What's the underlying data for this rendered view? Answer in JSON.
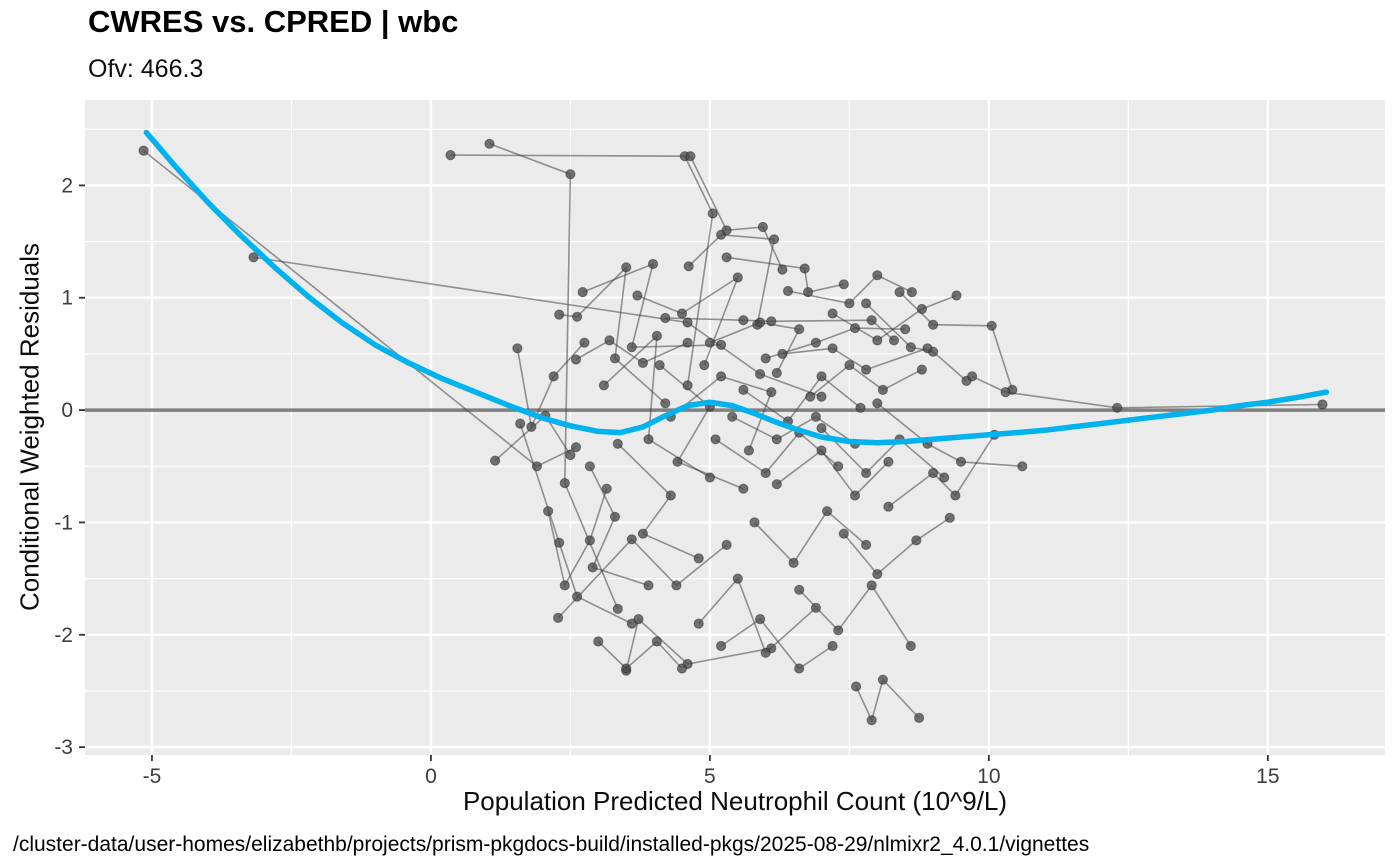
{
  "header": {
    "title": "CWRES vs. CPRED | wbc",
    "subtitle": "Ofv: 466.3"
  },
  "caption": "/cluster-data/user-homes/elizabethb/projects/prism-pkgdocs-build/installed-pkgs/2025-08-29/nlmixr2_4.0.1/vignettes",
  "chart_data": {
    "type": "scatter",
    "title": "CWRES vs. CPRED | wbc",
    "subtitle": "Ofv: 466.3",
    "xlabel": "Population Predicted Neutrophil Count (10^9/L)",
    "ylabel": "Conditional Weighted Residuals",
    "xlim": [
      -6.2,
      17.1
    ],
    "ylim": [
      -3.07,
      2.76
    ],
    "x_ticks": [
      -5,
      0,
      5,
      10,
      15
    ],
    "y_ticks": [
      -3,
      -2,
      -1,
      0,
      1,
      2
    ],
    "x_minor_ticks": [
      -2.5,
      2.5,
      7.5,
      12.5
    ],
    "y_minor_ticks": [
      -2.5,
      -1.5,
      -0.5,
      0.5,
      1.5,
      2.5
    ],
    "grid": true,
    "legend": "none",
    "reference_line_y": 0,
    "colors": {
      "panel_bg": "#ebebeb",
      "grid": "#ffffff",
      "point": "#474747",
      "line": "#424242",
      "ref_line": "#808080",
      "smooth": "#00b2ee",
      "tick_text": "#3d3d3d"
    },
    "smooth": {
      "name": "loess-smooth",
      "color": "#00b2ee",
      "points": [
        [
          -5.1,
          2.47
        ],
        [
          -4.6,
          2.18
        ],
        [
          -4.0,
          1.85
        ],
        [
          -3.4,
          1.55
        ],
        [
          -2.8,
          1.27
        ],
        [
          -2.2,
          1.01
        ],
        [
          -1.6,
          0.78
        ],
        [
          -1.0,
          0.58
        ],
        [
          -0.4,
          0.42
        ],
        [
          0.2,
          0.28
        ],
        [
          0.8,
          0.16
        ],
        [
          1.4,
          0.04
        ],
        [
          2.0,
          -0.07
        ],
        [
          2.5,
          -0.14
        ],
        [
          3.0,
          -0.19
        ],
        [
          3.4,
          -0.2
        ],
        [
          3.8,
          -0.15
        ],
        [
          4.2,
          -0.05
        ],
        [
          4.6,
          0.04
        ],
        [
          5.0,
          0.07
        ],
        [
          5.4,
          0.04
        ],
        [
          5.8,
          -0.03
        ],
        [
          6.2,
          -0.11
        ],
        [
          6.6,
          -0.18
        ],
        [
          7.0,
          -0.24
        ],
        [
          7.5,
          -0.28
        ],
        [
          8.0,
          -0.29
        ],
        [
          8.5,
          -0.28
        ],
        [
          9.0,
          -0.26
        ],
        [
          9.5,
          -0.24
        ],
        [
          10.0,
          -0.22
        ],
        [
          10.5,
          -0.2
        ],
        [
          11.0,
          -0.18
        ],
        [
          11.5,
          -0.15
        ],
        [
          12.0,
          -0.12
        ],
        [
          12.5,
          -0.09
        ],
        [
          13.0,
          -0.06
        ],
        [
          13.5,
          -0.03
        ],
        [
          14.0,
          0.0
        ],
        [
          14.5,
          0.04
        ],
        [
          15.0,
          0.07
        ],
        [
          15.5,
          0.11
        ],
        [
          16.05,
          0.16
        ]
      ]
    },
    "subject_paths": [
      [
        [
          -5.15,
          2.31
        ],
        [
          1.9,
          -0.5
        ],
        [
          2.6,
          -0.33
        ]
      ],
      [
        [
          -3.18,
          1.36
        ],
        [
          4.6,
          0.78
        ],
        [
          5.9,
          0.32
        ],
        [
          7.0,
          0.12
        ]
      ],
      [
        [
          0.35,
          2.27
        ],
        [
          4.55,
          2.26
        ],
        [
          5.05,
          1.75
        ],
        [
          4.6,
          0.22
        ]
      ],
      [
        [
          1.05,
          2.37
        ],
        [
          2.5,
          2.1
        ],
        [
          2.4,
          -0.65
        ],
        [
          3.35,
          -1.77
        ]
      ],
      [
        [
          1.6,
          -0.12
        ],
        [
          2.3,
          -1.18
        ],
        [
          2.62,
          -1.66
        ],
        [
          3.6,
          -1.9
        ]
      ],
      [
        [
          2.3,
          0.85
        ],
        [
          2.62,
          0.83
        ],
        [
          3.5,
          1.27
        ],
        [
          3.3,
          0.46
        ],
        [
          4.2,
          0.06
        ]
      ],
      [
        [
          2.72,
          1.05
        ],
        [
          3.98,
          1.3
        ],
        [
          3.6,
          0.56
        ],
        [
          5.2,
          0.58
        ]
      ],
      [
        [
          2.85,
          -0.5
        ],
        [
          3.3,
          -0.95
        ],
        [
          2.9,
          -1.4
        ],
        [
          3.9,
          -1.56
        ]
      ],
      [
        [
          3.1,
          0.22
        ],
        [
          4.05,
          0.66
        ],
        [
          3.9,
          -0.26
        ],
        [
          5.0,
          -0.6
        ]
      ],
      [
        [
          3.35,
          -0.3
        ],
        [
          4.3,
          -0.76
        ],
        [
          3.8,
          -1.1
        ],
        [
          4.8,
          -1.32
        ]
      ],
      [
        [
          3.5,
          -2.32
        ],
        [
          3.72,
          -1.86
        ],
        [
          4.6,
          -2.26
        ],
        [
          6.1,
          -2.12
        ]
      ],
      [
        [
          2.28,
          -1.85
        ],
        [
          3.6,
          -1.15
        ],
        [
          4.4,
          -1.56
        ],
        [
          5.3,
          -1.2
        ]
      ],
      [
        [
          3.7,
          1.02
        ],
        [
          4.5,
          0.86
        ],
        [
          5.5,
          1.18
        ],
        [
          4.9,
          0.4
        ]
      ],
      [
        [
          4.1,
          0.4
        ],
        [
          5.0,
          0.03
        ],
        [
          4.42,
          -0.46
        ],
        [
          5.6,
          -0.7
        ]
      ],
      [
        [
          4.3,
          -0.06
        ],
        [
          5.2,
          0.3
        ],
        [
          6.1,
          0.16
        ],
        [
          5.7,
          -0.36
        ]
      ],
      [
        [
          4.62,
          1.28
        ],
        [
          5.2,
          1.56
        ],
        [
          6.15,
          1.52
        ],
        [
          5.85,
          0.76
        ]
      ],
      [
        [
          4.8,
          -1.9
        ],
        [
          5.5,
          -1.5
        ],
        [
          6.0,
          -2.16
        ],
        [
          6.9,
          -1.76
        ]
      ],
      [
        [
          5.0,
          0.6
        ],
        [
          5.9,
          0.78
        ],
        [
          6.6,
          0.72
        ],
        [
          6.2,
          0.33
        ]
      ],
      [
        [
          5.1,
          -0.26
        ],
        [
          6.0,
          -0.56
        ],
        [
          6.6,
          -0.2
        ],
        [
          7.3,
          -0.5
        ]
      ],
      [
        [
          5.3,
          1.36
        ],
        [
          6.7,
          1.26
        ],
        [
          6.76,
          1.05
        ],
        [
          7.4,
          1.12
        ]
      ],
      [
        [
          5.6,
          0.18
        ],
        [
          6.4,
          -0.1
        ],
        [
          7.0,
          0.3
        ],
        [
          7.7,
          0.02
        ]
      ],
      [
        [
          5.8,
          -1.0
        ],
        [
          6.5,
          -1.36
        ],
        [
          7.1,
          -0.9
        ],
        [
          7.8,
          -1.2
        ]
      ],
      [
        [
          6.0,
          0.46
        ],
        [
          6.9,
          0.6
        ],
        [
          7.6,
          0.73
        ],
        [
          8.5,
          0.72
        ]
      ],
      [
        [
          6.2,
          -0.66
        ],
        [
          7.0,
          -0.36
        ],
        [
          7.6,
          -0.76
        ],
        [
          8.2,
          -0.46
        ]
      ],
      [
        [
          6.4,
          1.06
        ],
        [
          7.5,
          0.95
        ],
        [
          8.0,
          1.2
        ],
        [
          8.62,
          1.05
        ]
      ],
      [
        [
          6.6,
          -1.6
        ],
        [
          7.3,
          -1.96
        ],
        [
          7.9,
          -1.56
        ],
        [
          8.6,
          -2.1
        ]
      ],
      [
        [
          6.8,
          0.12
        ],
        [
          7.5,
          0.4
        ],
        [
          8.1,
          0.18
        ],
        [
          8.8,
          0.36
        ]
      ],
      [
        [
          7.0,
          -0.16
        ],
        [
          7.8,
          -0.56
        ],
        [
          8.4,
          -0.26
        ],
        [
          9.2,
          -0.6
        ]
      ],
      [
        [
          7.2,
          0.86
        ],
        [
          8.0,
          0.62
        ],
        [
          8.8,
          0.9
        ],
        [
          9.42,
          1.02
        ]
      ],
      [
        [
          7.4,
          -1.1
        ],
        [
          8.0,
          -1.46
        ],
        [
          8.7,
          -1.16
        ],
        [
          9.3,
          -0.96
        ]
      ],
      [
        [
          7.62,
          -2.46
        ],
        [
          7.9,
          -2.76
        ],
        [
          8.1,
          -2.4
        ],
        [
          8.75,
          -2.74
        ]
      ],
      [
        [
          7.8,
          0.95
        ],
        [
          8.6,
          0.56
        ],
        [
          9.0,
          0.52
        ],
        [
          9.6,
          0.26
        ]
      ],
      [
        [
          8.0,
          0.06
        ],
        [
          8.9,
          -0.3
        ],
        [
          9.5,
          -0.46
        ],
        [
          10.6,
          -0.5
        ]
      ],
      [
        [
          8.2,
          -0.86
        ],
        [
          9.0,
          -0.56
        ],
        [
          9.4,
          -0.76
        ],
        [
          10.1,
          -0.22
        ]
      ],
      [
        [
          8.4,
          1.05
        ],
        [
          9.0,
          0.76
        ],
        [
          10.05,
          0.75
        ],
        [
          10.42,
          0.18
        ]
      ],
      [
        [
          2.1,
          -0.9
        ],
        [
          2.4,
          -1.56
        ],
        [
          2.85,
          -1.16
        ],
        [
          3.15,
          -0.7
        ]
      ],
      [
        [
          9.7,
          0.3
        ],
        [
          10.3,
          0.16
        ],
        [
          12.3,
          0.02
        ],
        [
          15.98,
          0.05
        ]
      ],
      [
        [
          1.55,
          0.55
        ],
        [
          1.8,
          -0.15
        ],
        [
          2.2,
          0.3
        ],
        [
          2.75,
          0.6
        ]
      ],
      [
        [
          3.0,
          -2.06
        ],
        [
          3.5,
          -2.3
        ],
        [
          4.05,
          -2.06
        ],
        [
          4.5,
          -2.3
        ]
      ],
      [
        [
          5.2,
          -2.1
        ],
        [
          5.9,
          -1.86
        ],
        [
          6.6,
          -2.3
        ],
        [
          7.2,
          -2.1
        ]
      ],
      [
        [
          4.2,
          0.82
        ],
        [
          5.6,
          0.8
        ],
        [
          6.1,
          0.79
        ],
        [
          7.9,
          0.8
        ],
        [
          8.3,
          0.62
        ]
      ],
      [
        [
          2.6,
          0.45
        ],
        [
          3.2,
          0.62
        ],
        [
          3.8,
          0.42
        ],
        [
          4.6,
          0.6
        ]
      ],
      [
        [
          6.3,
          0.5
        ],
        [
          7.2,
          0.55
        ],
        [
          7.8,
          0.36
        ],
        [
          8.9,
          0.55
        ]
      ],
      [
        [
          5.4,
          -0.06
        ],
        [
          6.2,
          -0.26
        ],
        [
          6.9,
          -0.06
        ],
        [
          7.6,
          -0.3
        ]
      ],
      [
        [
          4.65,
          2.26
        ],
        [
          5.3,
          1.6
        ],
        [
          5.95,
          1.63
        ],
        [
          6.3,
          1.25
        ]
      ],
      [
        [
          1.15,
          -0.45
        ],
        [
          2.05,
          -0.05
        ],
        [
          2.5,
          -0.4
        ]
      ]
    ]
  }
}
